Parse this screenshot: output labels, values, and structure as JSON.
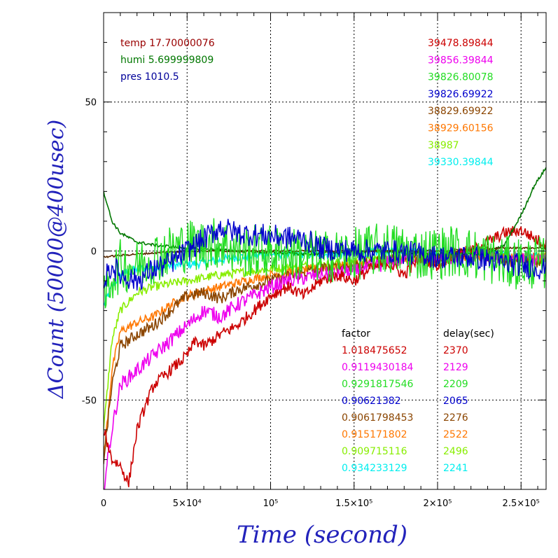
{
  "chart_data": {
    "type": "line",
    "xlabel": "Time (second)",
    "ylabel": "ΔCount (50000@400usec)",
    "xlim": [
      0,
      265000
    ],
    "ylim": [
      -80,
      80
    ],
    "grid": true,
    "x_ticks": [
      {
        "value": 0,
        "label": "0"
      },
      {
        "value": 50000,
        "label": "5×10⁴"
      },
      {
        "value": 100000,
        "label": "10⁵"
      },
      {
        "value": 150000,
        "label": "1.5×10⁵"
      },
      {
        "value": 200000,
        "label": "2×10⁵"
      },
      {
        "value": 250000,
        "label": "2.5×10⁵"
      }
    ],
    "y_ticks": [
      {
        "value": 50,
        "label": "50"
      },
      {
        "value": 0,
        "label": "0"
      },
      {
        "value": -50,
        "label": "-50"
      }
    ],
    "environment": [
      {
        "text": "temp 17.70000076",
        "color": "#990000"
      },
      {
        "text": "humi 5.699999809",
        "color": "#007700"
      },
      {
        "text": "pres 1010.5",
        "color": "#000099"
      }
    ],
    "baselines": [
      {
        "text": "39478.89844",
        "color": "#cc0000"
      },
      {
        "text": "39856.39844",
        "color": "#ee00ee"
      },
      {
        "text": "39826.80078",
        "color": "#22dd22"
      },
      {
        "text": "39826.69922",
        "color": "#0000cc"
      },
      {
        "text": "38829.69922",
        "color": "#8b4500"
      },
      {
        "text": "38929.60156",
        "color": "#ff7700"
      },
      {
        "text": "38987",
        "color": "#88ee00"
      },
      {
        "text": "39330.39844",
        "color": "#00eeee"
      }
    ],
    "calibration_header": {
      "factor": "factor",
      "delay": "delay(sec)"
    },
    "calibration": [
      {
        "factor": "1.018475652",
        "delay": "2370",
        "color": "#cc0000"
      },
      {
        "factor": "0.9119430184",
        "delay": "2129",
        "color": "#ee00ee"
      },
      {
        "factor": "0.9291817546",
        "delay": "2209",
        "color": "#22dd22"
      },
      {
        "factor": "0.90621382",
        "delay": "2065",
        "color": "#0000cc"
      },
      {
        "factor": "0.9061798453",
        "delay": "2276",
        "color": "#8b4500"
      },
      {
        "factor": "0.915171802",
        "delay": "2522",
        "color": "#ff7700"
      },
      {
        "factor": "0.909715116",
        "delay": "2496",
        "color": "#88ee00"
      },
      {
        "factor": "0.934233129",
        "delay": "2241",
        "color": "#00eeee"
      }
    ],
    "series": [
      {
        "color": "#00eeee",
        "noise": 1.5,
        "points": [
          [
            0,
            -18
          ],
          [
            5000,
            -12
          ],
          [
            10000,
            -8
          ],
          [
            20000,
            -6
          ],
          [
            40000,
            -5
          ],
          [
            60000,
            -4
          ],
          [
            80000,
            -2
          ],
          [
            100000,
            -1
          ],
          [
            140000,
            -1
          ],
          [
            180000,
            0
          ],
          [
            220000,
            -1
          ],
          [
            265000,
            -2
          ]
        ]
      },
      {
        "color": "#88ee00",
        "noise": 1.5,
        "points": [
          [
            0,
            -60
          ],
          [
            5000,
            -30
          ],
          [
            10000,
            -20
          ],
          [
            20000,
            -14
          ],
          [
            30000,
            -12
          ],
          [
            50000,
            -10
          ],
          [
            70000,
            -8
          ],
          [
            100000,
            -6
          ],
          [
            140000,
            -4
          ],
          [
            180000,
            -2
          ],
          [
            220000,
            -2
          ],
          [
            265000,
            -3
          ]
        ]
      },
      {
        "color": "#ff7700",
        "noise": 1.5,
        "points": [
          [
            0,
            -70
          ],
          [
            5000,
            -40
          ],
          [
            10000,
            -27
          ],
          [
            20000,
            -24
          ],
          [
            30000,
            -22
          ],
          [
            40000,
            -18
          ],
          [
            50000,
            -15
          ],
          [
            70000,
            -12
          ],
          [
            100000,
            -8
          ],
          [
            140000,
            -5
          ],
          [
            180000,
            -3
          ],
          [
            220000,
            -2
          ],
          [
            265000,
            -2
          ]
        ]
      },
      {
        "color": "#8b4500",
        "noise": 2,
        "points": [
          [
            0,
            -70
          ],
          [
            5000,
            -45
          ],
          [
            10000,
            -32
          ],
          [
            20000,
            -28
          ],
          [
            30000,
            -25
          ],
          [
            40000,
            -20
          ],
          [
            50000,
            -15
          ],
          [
            60000,
            -14
          ],
          [
            70000,
            -16
          ],
          [
            80000,
            -13
          ],
          [
            100000,
            -10
          ],
          [
            130000,
            -6
          ],
          [
            150000,
            -5
          ],
          [
            170000,
            -3
          ],
          [
            200000,
            -2
          ],
          [
            230000,
            0
          ],
          [
            240000,
            -3
          ],
          [
            265000,
            -4
          ]
        ]
      },
      {
        "color": "#ee00ee",
        "noise": 2.5,
        "points": [
          [
            0,
            -80
          ],
          [
            5000,
            -60
          ],
          [
            10000,
            -45
          ],
          [
            20000,
            -40
          ],
          [
            30000,
            -35
          ],
          [
            40000,
            -30
          ],
          [
            50000,
            -25
          ],
          [
            60000,
            -20
          ],
          [
            70000,
            -22
          ],
          [
            80000,
            -18
          ],
          [
            90000,
            -15
          ],
          [
            100000,
            -12
          ],
          [
            110000,
            -10
          ],
          [
            130000,
            -8
          ],
          [
            150000,
            -7
          ],
          [
            170000,
            -4
          ],
          [
            190000,
            -2
          ],
          [
            200000,
            -3
          ],
          [
            220000,
            -1
          ],
          [
            240000,
            -2
          ],
          [
            265000,
            -3
          ]
        ]
      },
      {
        "color": "#cc0000",
        "noise": 2,
        "points": [
          [
            0,
            -60
          ],
          [
            5000,
            -70
          ],
          [
            10000,
            -72
          ],
          [
            15000,
            -78
          ],
          [
            20000,
            -60
          ],
          [
            25000,
            -52
          ],
          [
            30000,
            -45
          ],
          [
            40000,
            -40
          ],
          [
            50000,
            -35
          ],
          [
            55000,
            -30
          ],
          [
            60000,
            -32
          ],
          [
            70000,
            -28
          ],
          [
            80000,
            -25
          ],
          [
            90000,
            -20
          ],
          [
            100000,
            -15
          ],
          [
            110000,
            -12
          ],
          [
            120000,
            -15
          ],
          [
            130000,
            -10
          ],
          [
            140000,
            -8
          ],
          [
            150000,
            -10
          ],
          [
            160000,
            -6
          ],
          [
            170000,
            -4
          ],
          [
            180000,
            -8
          ],
          [
            190000,
            -2
          ],
          [
            200000,
            -5
          ],
          [
            210000,
            -1
          ],
          [
            220000,
            0
          ],
          [
            230000,
            3
          ],
          [
            240000,
            6
          ],
          [
            250000,
            7
          ],
          [
            265000,
            2
          ]
        ]
      },
      {
        "color": "#007700",
        "noise": 0.5,
        "points": [
          [
            0,
            20
          ],
          [
            5000,
            10
          ],
          [
            10000,
            6
          ],
          [
            20000,
            3
          ],
          [
            30000,
            2
          ],
          [
            50000,
            1
          ],
          [
            80000,
            0
          ],
          [
            120000,
            -1
          ],
          [
            160000,
            0
          ],
          [
            200000,
            -1
          ],
          [
            230000,
            -1
          ],
          [
            240000,
            2
          ],
          [
            250000,
            12
          ],
          [
            258000,
            22
          ],
          [
            265000,
            28
          ]
        ]
      },
      {
        "color": "#5a2a00",
        "noise": 0.3,
        "points": [
          [
            0,
            -2
          ],
          [
            20000,
            -1
          ],
          [
            50000,
            0
          ],
          [
            100000,
            0
          ],
          [
            150000,
            0
          ],
          [
            200000,
            0
          ],
          [
            240000,
            1
          ],
          [
            265000,
            1
          ]
        ]
      },
      {
        "color": "#22dd22",
        "noise": 9,
        "points": [
          [
            0,
            -18
          ],
          [
            5000,
            -8
          ],
          [
            10000,
            -5
          ],
          [
            20000,
            -5
          ],
          [
            30000,
            -2
          ],
          [
            40000,
            0
          ],
          [
            50000,
            2
          ],
          [
            60000,
            2
          ],
          [
            70000,
            3
          ],
          [
            80000,
            0
          ],
          [
            100000,
            0
          ],
          [
            130000,
            -2
          ],
          [
            150000,
            -1
          ],
          [
            170000,
            1
          ],
          [
            190000,
            -1
          ],
          [
            210000,
            0
          ],
          [
            230000,
            -2
          ],
          [
            240000,
            -4
          ],
          [
            265000,
            -4
          ]
        ]
      },
      {
        "color": "#0000cc",
        "noise": 4,
        "points": [
          [
            0,
            -10
          ],
          [
            5000,
            -5
          ],
          [
            10000,
            -8
          ],
          [
            20000,
            -10
          ],
          [
            30000,
            -6
          ],
          [
            40000,
            -4
          ],
          [
            50000,
            0
          ],
          [
            60000,
            4
          ],
          [
            70000,
            8
          ],
          [
            80000,
            6
          ],
          [
            100000,
            5
          ],
          [
            120000,
            4
          ],
          [
            130000,
            1
          ],
          [
            150000,
            0
          ],
          [
            170000,
            0
          ],
          [
            190000,
            -1
          ],
          [
            200000,
            -2
          ],
          [
            220000,
            -2
          ],
          [
            240000,
            -4
          ],
          [
            265000,
            -6
          ]
        ]
      }
    ]
  }
}
